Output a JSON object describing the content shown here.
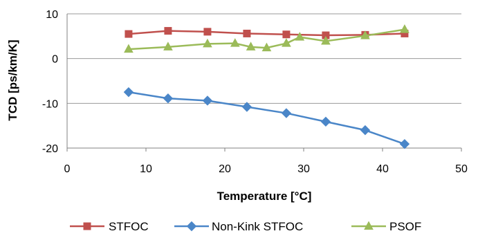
{
  "chart_data": {
    "type": "line",
    "title": "",
    "xlabel": "Temperature [°C]",
    "ylabel": "TCD [ps/km/K]",
    "xlim": [
      0,
      50
    ],
    "ylim": [
      -20,
      10
    ],
    "xticks": [
      0,
      10,
      20,
      30,
      40,
      50
    ],
    "yticks": [
      10,
      0,
      -10,
      -20
    ],
    "grid": "horizontal major gridlines",
    "legend_position": "bottom",
    "series": [
      {
        "name": "STFOC",
        "color": "#c0504d",
        "marker": "square",
        "points": [
          [
            7.8,
            5.5
          ],
          [
            12.8,
            6.2
          ],
          [
            17.8,
            6.0
          ],
          [
            22.8,
            5.6
          ],
          [
            27.8,
            5.4
          ],
          [
            32.8,
            5.2
          ],
          [
            37.8,
            5.3
          ],
          [
            42.8,
            5.6
          ]
        ]
      },
      {
        "name": "Non-Kink STFOC",
        "color": "#4a86c8",
        "marker": "diamond",
        "points": [
          [
            7.8,
            -7.5
          ],
          [
            12.8,
            -8.9
          ],
          [
            17.8,
            -9.4
          ],
          [
            22.8,
            -10.8
          ],
          [
            27.8,
            -12.2
          ],
          [
            32.8,
            -14.1
          ],
          [
            37.8,
            -16.0
          ],
          [
            42.8,
            -19.1
          ]
        ]
      },
      {
        "name": "PSOF",
        "color": "#9bbb59",
        "marker": "triangle",
        "points": [
          [
            7.8,
            2.1
          ],
          [
            12.8,
            2.6
          ],
          [
            17.8,
            3.3
          ],
          [
            21.3,
            3.4
          ],
          [
            23.3,
            2.6
          ],
          [
            25.3,
            2.4
          ],
          [
            27.8,
            3.4
          ],
          [
            29.5,
            4.8
          ],
          [
            32.8,
            3.9
          ],
          [
            37.8,
            5.1
          ],
          [
            42.8,
            6.5
          ]
        ]
      }
    ]
  }
}
